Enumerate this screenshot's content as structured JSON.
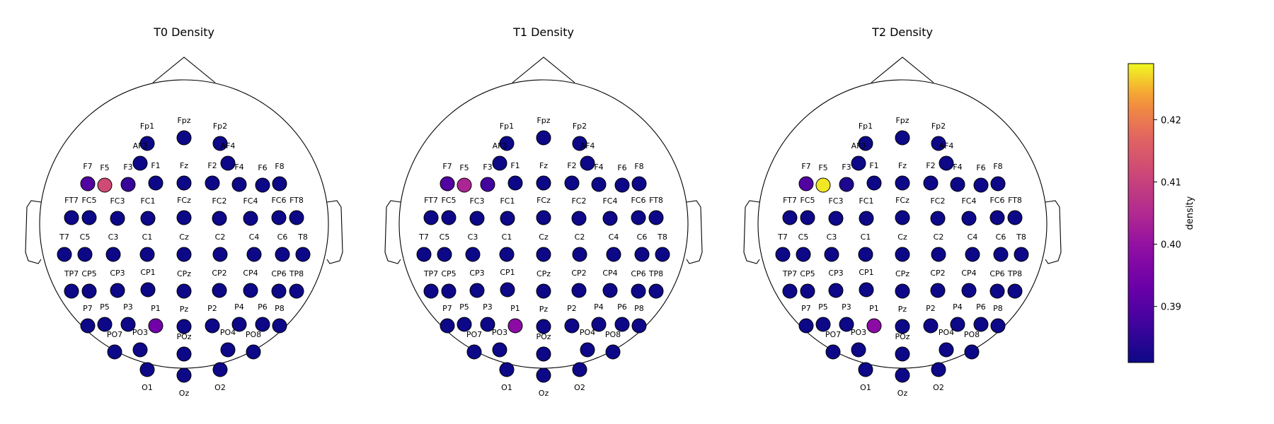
{
  "chart_data": {
    "type": "scatter",
    "panels": [
      {
        "title": "T0 Density",
        "highlights": {
          "F7": 0.3895,
          "F5": 0.412,
          "F3": 0.386,
          "P1": 0.394
        }
      },
      {
        "title": "T1 Density",
        "highlights": {
          "F7": 0.3895,
          "F5": 0.404,
          "F3": 0.3875,
          "P1": 0.3985
        }
      },
      {
        "title": "T2 Density",
        "highlights": {
          "F7": 0.3895,
          "F5": 0.428,
          "F3": 0.383,
          "P1": 0.3985
        }
      }
    ],
    "baseline_value": 0.381,
    "electrodes": [
      "Fp1",
      "Fpz",
      "Fp2",
      "AF3",
      "AF4",
      "F7",
      "F5",
      "F3",
      "F1",
      "Fz",
      "F2",
      "F4",
      "F6",
      "F8",
      "FT7",
      "FC5",
      "FC3",
      "FC1",
      "FCz",
      "FC2",
      "FC4",
      "FC6",
      "FT8",
      "T7",
      "C5",
      "C3",
      "C1",
      "Cz",
      "C2",
      "C4",
      "C6",
      "T8",
      "TP7",
      "CP5",
      "CP3",
      "CP1",
      "CPz",
      "CP2",
      "CP4",
      "CP6",
      "TP8",
      "P7",
      "P5",
      "P3",
      "P1",
      "Pz",
      "P2",
      "P4",
      "P6",
      "P8",
      "PO7",
      "PO3",
      "POz",
      "PO4",
      "PO8",
      "O1",
      "Oz",
      "O2"
    ],
    "colorbar": {
      "label": "density",
      "range": [
        0.381,
        0.429
      ],
      "ticks": [
        0.39,
        0.4,
        0.41,
        0.42
      ],
      "tick_labels": [
        "0.39",
        "0.40",
        "0.41",
        "0.42"
      ],
      "colormap": "plasma"
    }
  }
}
